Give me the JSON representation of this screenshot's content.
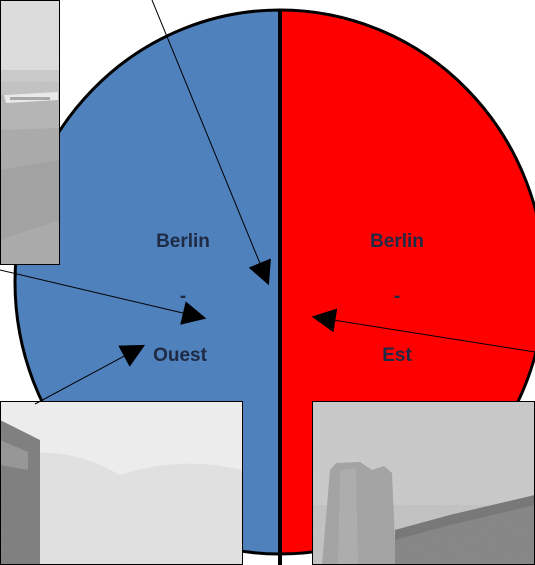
{
  "west": {
    "line1": "Berlin",
    "line2": "-",
    "line3": "Ouest",
    "fill_color": "#4f81bd",
    "text_color": "#1f2a44"
  },
  "east": {
    "line1": "Berlin",
    "line2": "-",
    "line3": "Est",
    "fill_color": "#ff0000",
    "text_color": "#1f2a44"
  },
  "photos": [
    {
      "name": "airport-photo",
      "subject": "airfield with airplane (black and white)"
    },
    {
      "name": "building-photo-west",
      "subject": "dark building against cloudy sky (black and white)"
    },
    {
      "name": "ruin-tower-photo-east",
      "subject": "ruined stone tower and building (black and white)"
    }
  ]
}
